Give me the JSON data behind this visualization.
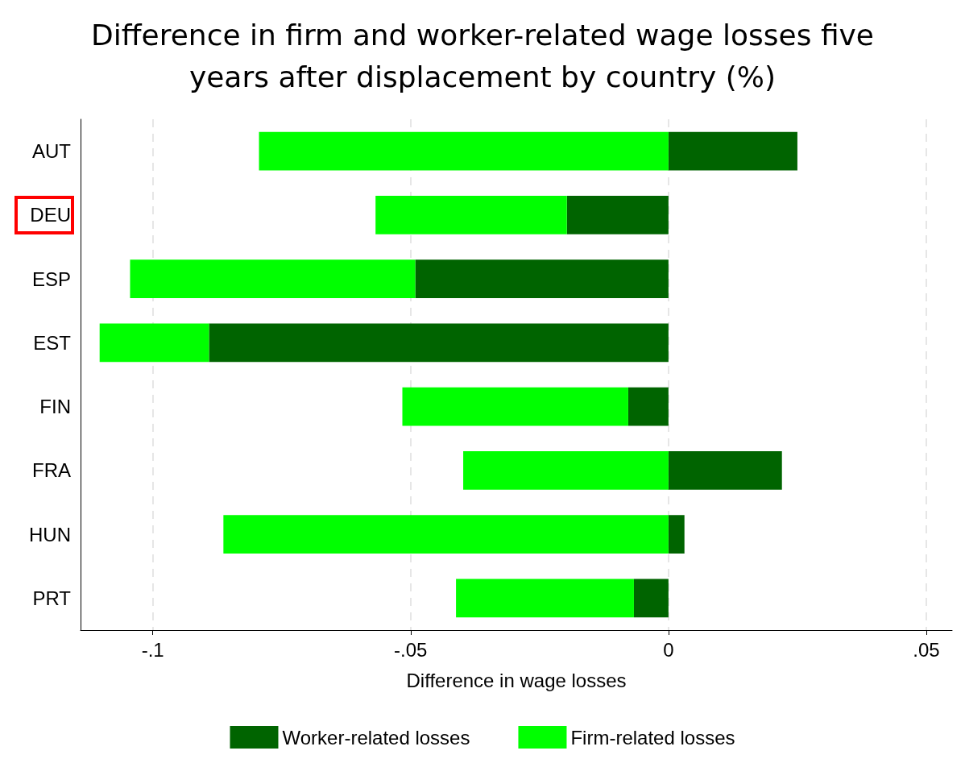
{
  "chart_data": {
    "type": "bar",
    "orientation": "horizontal",
    "stacked": true,
    "title": "Difference in firm and worker-related wage losses five\nyears after displacement by country (%)",
    "xlabel": "Difference in wage losses",
    "categories": [
      "AUT",
      "DEU",
      "ESP",
      "EST",
      "FIN",
      "FRA",
      "HUN",
      "PRT"
    ],
    "series": [
      {
        "name": "Worker-related losses",
        "color": "#006400",
        "values": [
          0.025,
          -0.0197,
          -0.0491,
          -0.0891,
          -0.0078,
          0.022,
          0.0031,
          -0.0067
        ]
      },
      {
        "name": "Firm-related losses",
        "color": "#00ff00",
        "values": [
          -0.0794,
          -0.0371,
          -0.0553,
          -0.0212,
          -0.0438,
          -0.0398,
          -0.0863,
          -0.0345
        ]
      }
    ],
    "xlim": [
      -0.114,
      0.055
    ],
    "xticks": [
      {
        "value": -0.1,
        "label": "-.1"
      },
      {
        "value": -0.05,
        "label": "-.05"
      },
      {
        "value": 0,
        "label": "0"
      },
      {
        "value": 0.05,
        "label": ".05"
      }
    ],
    "grid": "x",
    "legend": "bottom"
  }
}
